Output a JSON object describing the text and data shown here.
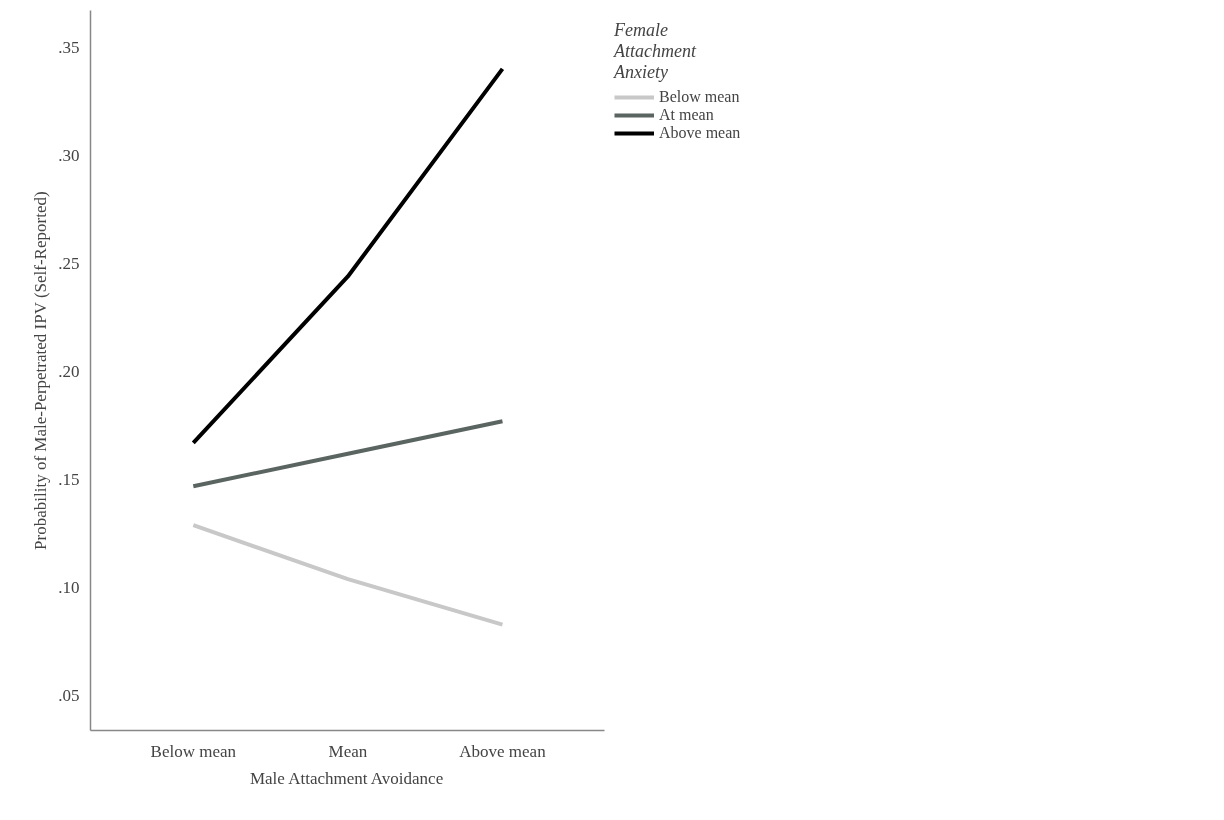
{
  "chart_data": {
    "type": "line",
    "xlabel": "Male Attachment Avoidance",
    "ylabel": "Probability of Male-Perpetrated IPV (Self-Reported)",
    "legend_title": "Female\nAttachment\nAnxiety",
    "categories": [
      "Below mean",
      "Mean",
      "Above mean"
    ],
    "series": [
      {
        "name": "Below mean",
        "color": "#c8c8c8",
        "values": [
          0.129,
          0.104,
          0.083
        ]
      },
      {
        "name": "At mean",
        "color": "#5a6460",
        "values": [
          0.147,
          0.162,
          0.177
        ]
      },
      {
        "name": "Above mean",
        "color": "#000000",
        "values": [
          0.167,
          0.244,
          0.34
        ]
      }
    ],
    "ylim": [
      0.034,
      0.367
    ],
    "yticks": [
      {
        "value": 0.05,
        "label": ".05"
      },
      {
        "value": 0.1,
        "label": ".10"
      },
      {
        "value": 0.15,
        "label": ".15"
      },
      {
        "value": 0.2,
        "label": ".20"
      },
      {
        "value": 0.25,
        "label": ".25"
      },
      {
        "value": 0.3,
        "label": ".30"
      },
      {
        "value": 0.35,
        "label": ".35"
      }
    ],
    "grid": false,
    "legend": "top right",
    "marker": "none",
    "line_style": "solid"
  }
}
